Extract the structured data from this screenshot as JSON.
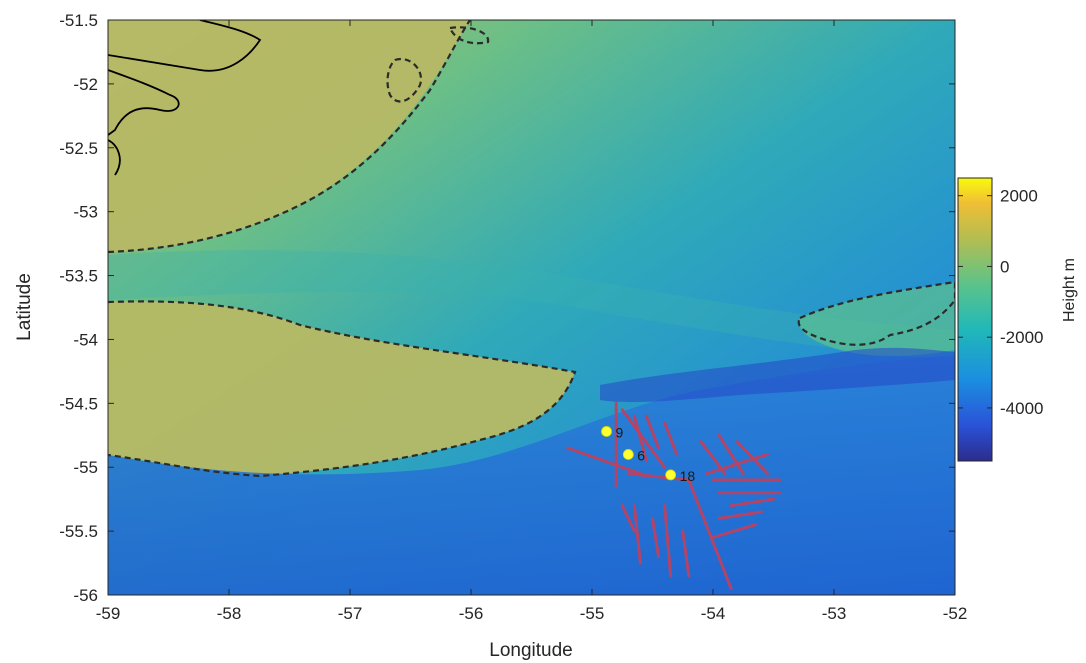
{
  "map": {
    "xlabel": "Longitude",
    "ylabel": "Latitude",
    "xlim": [
      -59,
      -52
    ],
    "ylim": [
      -56,
      -51.5
    ],
    "x_ticks": [
      {
        "value": -59,
        "label": "-59"
      },
      {
        "value": -58,
        "label": "-58"
      },
      {
        "value": -57,
        "label": "-57"
      },
      {
        "value": -56,
        "label": "-56"
      },
      {
        "value": -55,
        "label": "-55"
      },
      {
        "value": -54,
        "label": "-54"
      },
      {
        "value": -53,
        "label": "-53"
      },
      {
        "value": -52,
        "label": "-52"
      }
    ],
    "y_ticks": [
      {
        "value": -51.5,
        "label": "-51.5"
      },
      {
        "value": -52,
        "label": "-52"
      },
      {
        "value": -52.5,
        "label": "-52.5"
      },
      {
        "value": -53,
        "label": "-53"
      },
      {
        "value": -53.5,
        "label": "-53.5"
      },
      {
        "value": -54,
        "label": "-54"
      },
      {
        "value": -54.5,
        "label": "-54.5"
      },
      {
        "value": -55,
        "label": "-55"
      },
      {
        "value": -55.5,
        "label": "-55.5"
      },
      {
        "value": -56,
        "label": "-56"
      }
    ],
    "colors": {
      "shelf": "#c7b55e",
      "slope": "#3fb5a5",
      "deep": "#1e6fd6",
      "station_marker": "#ffff33",
      "tracks": "#c2405c",
      "coastline": "#000000",
      "contour": "#2b2b2b"
    },
    "stations": [
      {
        "label": "9",
        "lon": -54.88,
        "lat": -54.72
      },
      {
        "label": "6",
        "lon": -54.7,
        "lat": -54.9
      },
      {
        "label": "18",
        "lon": -54.35,
        "lat": -55.06
      }
    ],
    "tracks": [
      [
        [
          -54.8,
          -54.5
        ],
        [
          -54.8,
          -55.15
        ]
      ],
      [
        [
          -55.2,
          -54.85
        ],
        [
          -54.6,
          -55.05
        ]
      ],
      [
        [
          -54.75,
          -54.55
        ],
        [
          -54.4,
          -55.0
        ]
      ],
      [
        [
          -54.65,
          -54.6
        ],
        [
          -54.55,
          -54.95
        ]
      ],
      [
        [
          -54.55,
          -54.6
        ],
        [
          -54.45,
          -54.85
        ]
      ],
      [
        [
          -54.4,
          -54.65
        ],
        [
          -54.3,
          -54.9
        ]
      ],
      [
        [
          -54.7,
          -55.05
        ],
        [
          -54.2,
          -55.1
        ]
      ],
      [
        [
          -54.2,
          -55.1
        ],
        [
          -53.85,
          -55.95
        ]
      ],
      [
        [
          -54.1,
          -54.8
        ],
        [
          -53.9,
          -55.05
        ]
      ],
      [
        [
          -53.95,
          -54.75
        ],
        [
          -53.75,
          -55.05
        ]
      ],
      [
        [
          -53.8,
          -54.8
        ],
        [
          -53.55,
          -55.05
        ]
      ],
      [
        [
          -54.05,
          -55.05
        ],
        [
          -53.55,
          -54.9
        ]
      ],
      [
        [
          -54.0,
          -55.1
        ],
        [
          -53.45,
          -55.1
        ]
      ],
      [
        [
          -53.95,
          -55.2
        ],
        [
          -53.45,
          -55.2
        ]
      ],
      [
        [
          -53.85,
          -55.3
        ],
        [
          -53.5,
          -55.25
        ]
      ],
      [
        [
          -53.95,
          -55.4
        ],
        [
          -53.6,
          -55.35
        ]
      ],
      [
        [
          -54.0,
          -55.55
        ],
        [
          -53.65,
          -55.45
        ]
      ],
      [
        [
          -54.75,
          -55.3
        ],
        [
          -54.65,
          -55.5
        ]
      ],
      [
        [
          -54.65,
          -55.3
        ],
        [
          -54.6,
          -55.75
        ]
      ],
      [
        [
          -54.5,
          -55.4
        ],
        [
          -54.45,
          -55.7
        ]
      ],
      [
        [
          -54.4,
          -55.3
        ],
        [
          -54.35,
          -55.85
        ]
      ],
      [
        [
          -54.25,
          -55.5
        ],
        [
          -54.2,
          -55.85
        ]
      ]
    ],
    "colorbar": {
      "title": "Height m",
      "min": -5500,
      "max": 2500,
      "ticks": [
        {
          "value": 2000,
          "label": "2000"
        },
        {
          "value": 0,
          "label": "0"
        },
        {
          "value": -2000,
          "label": "-2000"
        },
        {
          "value": -4000,
          "label": "-4000"
        }
      ],
      "stops": [
        {
          "value": -5500,
          "color": "#2c2c8c"
        },
        {
          "value": -4500,
          "color": "#2a52d8"
        },
        {
          "value": -3200,
          "color": "#1b8ee0"
        },
        {
          "value": -1800,
          "color": "#20b8b8"
        },
        {
          "value": -500,
          "color": "#5cc38a"
        },
        {
          "value": 800,
          "color": "#b5bd50"
        },
        {
          "value": 1800,
          "color": "#f0be35"
        },
        {
          "value": 2500,
          "color": "#f8fa0d"
        }
      ]
    }
  }
}
